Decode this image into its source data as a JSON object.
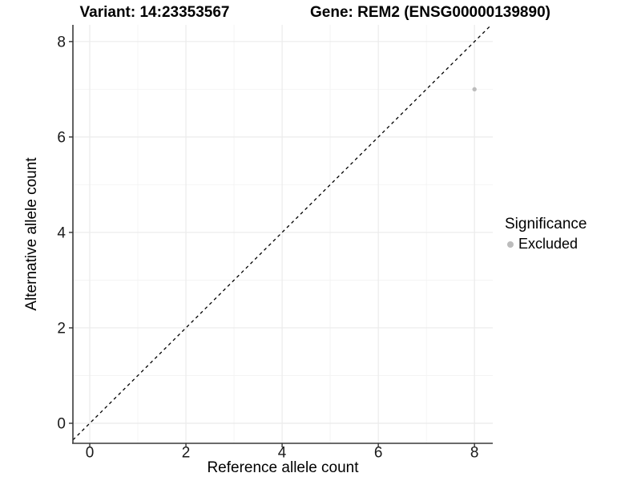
{
  "header": {
    "variant_title": "Variant: 14:23353567",
    "gene_title": "Gene: REM2 (ENSG00000139890)"
  },
  "chart_data": {
    "type": "scatter",
    "xlabel": "Reference allele count",
    "ylabel": "Alternative allele count",
    "x_ticks": [
      0,
      2,
      4,
      6,
      8
    ],
    "y_ticks": [
      0,
      2,
      4,
      6,
      8
    ],
    "xlim": [
      -0.35,
      8.38
    ],
    "ylim": [
      -0.42,
      8.35
    ],
    "grid": "major+minor",
    "points": [
      {
        "x": 8,
        "y": 7,
        "series": "Excluded",
        "color": "#bcbcbc"
      }
    ],
    "reference_line": {
      "type": "identity",
      "slope": 1,
      "intercept": 0,
      "style": "dashed",
      "color": "#000000"
    },
    "legend": {
      "title": "Significance",
      "position": "right",
      "entries": [
        {
          "label": "Excluded",
          "color": "#bcbcbc"
        }
      ]
    },
    "colors": {
      "grid_major": "#ebebeb",
      "grid_minor": "#f4f4f4",
      "axis": "#3a3a3a",
      "tick": "#333333",
      "tick_text": "#1a1a1a"
    }
  }
}
